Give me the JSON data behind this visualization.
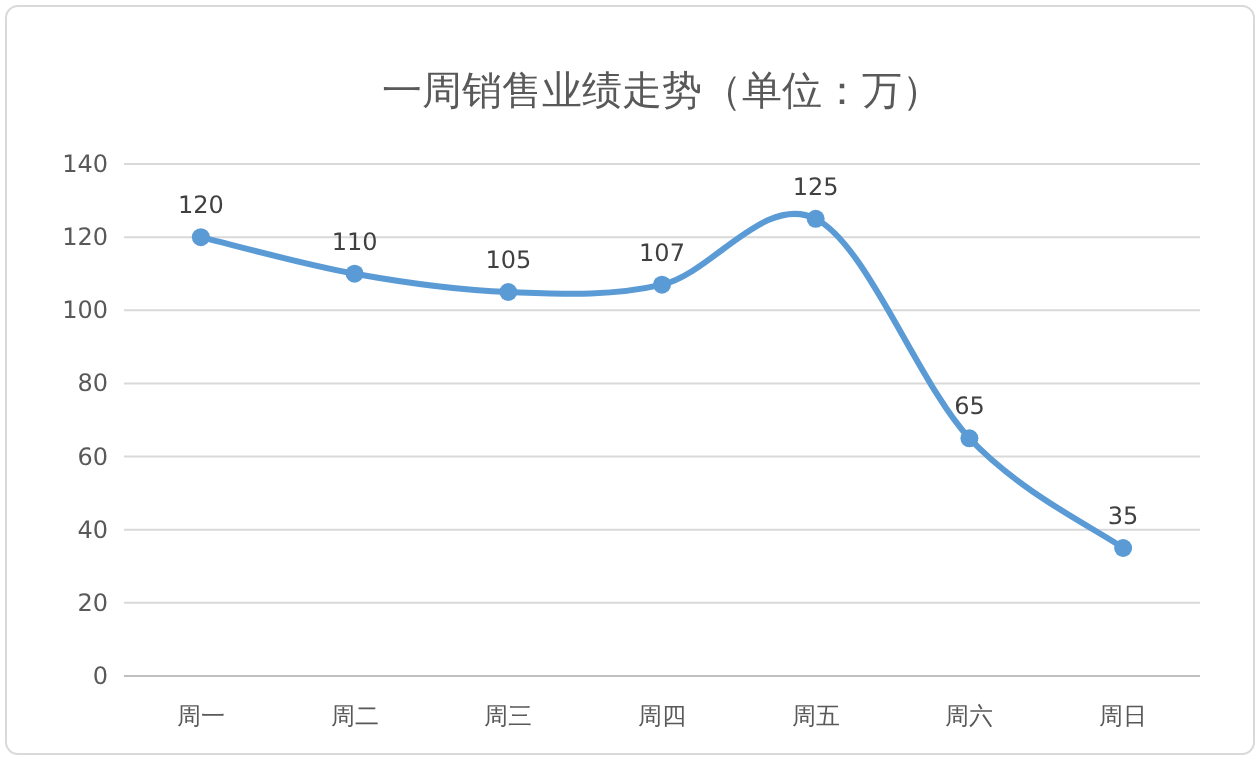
{
  "chart_data": {
    "type": "line",
    "title": "一周销售业绩走势（单位：万）",
    "categories": [
      "周一",
      "周二",
      "周三",
      "周四",
      "周五",
      "周六",
      "周日"
    ],
    "values": [
      120,
      110,
      105,
      107,
      125,
      65,
      35
    ],
    "color": "#5b9bd5",
    "ylim": [
      0,
      140
    ],
    "yticks": [
      0,
      20,
      40,
      60,
      80,
      100,
      120,
      140
    ],
    "grid": "y",
    "marker": "circle",
    "line_style": "solid",
    "data_labels": true
  }
}
